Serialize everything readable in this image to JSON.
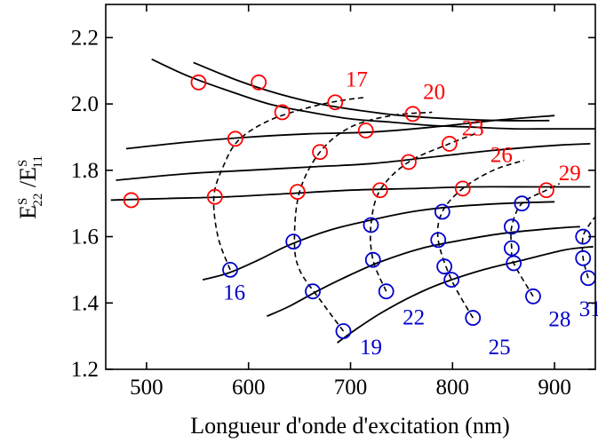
{
  "chart_data": {
    "type": "scatter",
    "xlabel": "Longueur d'onde d'excitation (nm)",
    "ylabel": "E",
    "ylabel_parts": {
      "num": "E",
      "num_sup": "S",
      "num_sub": "22",
      "slash": " /",
      "den": "E",
      "den_sup": "S",
      "den_sub": "11"
    },
    "xlim": [
      460,
      940
    ],
    "ylim": [
      1.2,
      2.3
    ],
    "xticks": [
      500,
      600,
      700,
      800,
      900
    ],
    "yticks": [
      1.2,
      1.4,
      1.6,
      1.8,
      2.0,
      2.2
    ],
    "xtick_labels": [
      "500",
      "600",
      "700",
      "800",
      "900"
    ],
    "ytick_labels": [
      "1.2",
      "1.4",
      "1.6",
      "1.8",
      "2.0",
      "2.2"
    ],
    "colors": {
      "red": "#ff0000",
      "blue": "#0000cc",
      "line": "#000000"
    },
    "red_points": [
      [
        485,
        1.71
      ],
      [
        551,
        2.065
      ],
      [
        567,
        1.72
      ],
      [
        587,
        1.895
      ],
      [
        610,
        2.065
      ],
      [
        633,
        1.975
      ],
      [
        648,
        1.735
      ],
      [
        670,
        1.855
      ],
      [
        685,
        2.005
      ],
      [
        715,
        1.92
      ],
      [
        729,
        1.74
      ],
      [
        757,
        1.825
      ],
      [
        761,
        1.97
      ],
      [
        797,
        1.88
      ],
      [
        810,
        1.745
      ],
      [
        892,
        1.74
      ]
    ],
    "blue_points": [
      [
        582,
        1.5
      ],
      [
        644,
        1.585
      ],
      [
        663,
        1.435
      ],
      [
        693,
        1.315
      ],
      [
        720,
        1.635
      ],
      [
        722,
        1.53
      ],
      [
        735,
        1.435
      ],
      [
        786,
        1.59
      ],
      [
        790,
        1.675
      ],
      [
        792,
        1.51
      ],
      [
        799,
        1.47
      ],
      [
        820,
        1.355
      ],
      [
        858,
        1.565
      ],
      [
        858,
        1.63
      ],
      [
        860,
        1.52
      ],
      [
        868,
        1.7
      ],
      [
        879,
        1.42
      ],
      [
        928,
        1.6
      ],
      [
        928,
        1.535
      ],
      [
        933,
        1.475
      ]
    ],
    "solid_curves": [
      [
        [
          505,
          2.135
        ],
        [
          540,
          2.085
        ],
        [
          580,
          2.04
        ],
        [
          620,
          2.0
        ],
        [
          660,
          1.975
        ],
        [
          700,
          1.955
        ],
        [
          740,
          1.945
        ],
        [
          780,
          1.935
        ],
        [
          820,
          1.93
        ],
        [
          860,
          1.925
        ],
        [
          900,
          1.925
        ],
        [
          940,
          1.925
        ]
      ],
      [
        [
          546,
          2.125
        ],
        [
          590,
          2.07
        ],
        [
          630,
          2.03
        ],
        [
          670,
          2.0
        ],
        [
          710,
          1.98
        ],
        [
          750,
          1.965
        ],
        [
          800,
          1.955
        ],
        [
          850,
          1.95
        ],
        [
          895,
          1.95
        ]
      ],
      [
        [
          480,
          1.865
        ],
        [
          540,
          1.885
        ],
        [
          600,
          1.9
        ],
        [
          660,
          1.91
        ],
        [
          720,
          1.915
        ],
        [
          780,
          1.93
        ],
        [
          840,
          1.95
        ],
        [
          900,
          1.965
        ]
      ],
      [
        [
          470,
          1.77
        ],
        [
          540,
          1.79
        ],
        [
          600,
          1.8
        ],
        [
          660,
          1.81
        ],
        [
          720,
          1.82
        ],
        [
          780,
          1.84
        ],
        [
          840,
          1.86
        ],
        [
          900,
          1.875
        ],
        [
          935,
          1.88
        ]
      ],
      [
        [
          465,
          1.71
        ],
        [
          520,
          1.715
        ],
        [
          580,
          1.72
        ],
        [
          640,
          1.73
        ],
        [
          700,
          1.74
        ],
        [
          760,
          1.745
        ],
        [
          820,
          1.75
        ],
        [
          880,
          1.75
        ],
        [
          935,
          1.75
        ]
      ],
      [
        [
          555,
          1.47
        ],
        [
          580,
          1.49
        ],
        [
          610,
          1.53
        ],
        [
          640,
          1.575
        ],
        [
          680,
          1.62
        ],
        [
          720,
          1.65
        ],
        [
          760,
          1.675
        ],
        [
          800,
          1.69
        ],
        [
          850,
          1.7
        ],
        [
          900,
          1.705
        ]
      ],
      [
        [
          618,
          1.36
        ],
        [
          640,
          1.39
        ],
        [
          670,
          1.44
        ],
        [
          700,
          1.485
        ],
        [
          730,
          1.525
        ],
        [
          770,
          1.565
        ],
        [
          810,
          1.59
        ],
        [
          850,
          1.61
        ],
        [
          900,
          1.625
        ],
        [
          925,
          1.63
        ]
      ],
      [
        [
          687,
          1.28
        ],
        [
          705,
          1.32
        ],
        [
          730,
          1.37
        ],
        [
          760,
          1.42
        ],
        [
          790,
          1.46
        ],
        [
          830,
          1.5
        ],
        [
          870,
          1.53
        ],
        [
          910,
          1.56
        ],
        [
          938,
          1.57
        ]
      ]
    ],
    "dashed_curves": [
      [
        [
          582,
          1.5
        ],
        [
          570,
          1.6
        ],
        [
          566,
          1.72
        ],
        [
          575,
          1.81
        ],
        [
          590,
          1.89
        ],
        [
          620,
          1.95
        ],
        [
          660,
          1.99
        ],
        [
          690,
          2.01
        ],
        [
          715,
          2.02
        ]
      ],
      [
        [
          693,
          1.315
        ],
        [
          670,
          1.41
        ],
        [
          650,
          1.5
        ],
        [
          645,
          1.59
        ],
        [
          650,
          1.735
        ],
        [
          670,
          1.855
        ],
        [
          700,
          1.93
        ],
        [
          740,
          1.965
        ],
        [
          780,
          1.975
        ]
      ],
      [
        [
          735,
          1.435
        ],
        [
          722,
          1.53
        ],
        [
          720,
          1.635
        ],
        [
          729,
          1.74
        ],
        [
          757,
          1.825
        ],
        [
          797,
          1.88
        ],
        [
          822,
          1.91
        ]
      ],
      [
        [
          820,
          1.355
        ],
        [
          799,
          1.47
        ],
        [
          786,
          1.59
        ],
        [
          790,
          1.675
        ],
        [
          810,
          1.745
        ],
        [
          840,
          1.8
        ],
        [
          870,
          1.83
        ]
      ],
      [
        [
          879,
          1.42
        ],
        [
          860,
          1.52
        ],
        [
          858,
          1.565
        ],
        [
          858,
          1.63
        ],
        [
          868,
          1.7
        ],
        [
          892,
          1.74
        ],
        [
          905,
          1.76
        ]
      ],
      [
        [
          933,
          1.475
        ],
        [
          928,
          1.535
        ],
        [
          928,
          1.6
        ],
        [
          935,
          1.64
        ],
        [
          940,
          1.66
        ]
      ]
    ],
    "annotations": [
      {
        "text": "17",
        "x": 706,
        "y": 2.052,
        "color": "red"
      },
      {
        "text": "20",
        "x": 782,
        "y": 2.015,
        "color": "red"
      },
      {
        "text": "23",
        "x": 820,
        "y": 1.905,
        "color": "red"
      },
      {
        "text": "26",
        "x": 848,
        "y": 1.825,
        "color": "red"
      },
      {
        "text": "29",
        "x": 915,
        "y": 1.77,
        "color": "red"
      },
      {
        "text": "16",
        "x": 586,
        "y": 1.41,
        "color": "blue"
      },
      {
        "text": "19",
        "x": 720,
        "y": 1.245,
        "color": "blue"
      },
      {
        "text": "22",
        "x": 762,
        "y": 1.335,
        "color": "blue"
      },
      {
        "text": "25",
        "x": 846,
        "y": 1.245,
        "color": "blue"
      },
      {
        "text": "28",
        "x": 905,
        "y": 1.33,
        "color": "blue"
      },
      {
        "text": "31",
        "x": 935,
        "y": 1.36,
        "color": "blue"
      }
    ]
  }
}
